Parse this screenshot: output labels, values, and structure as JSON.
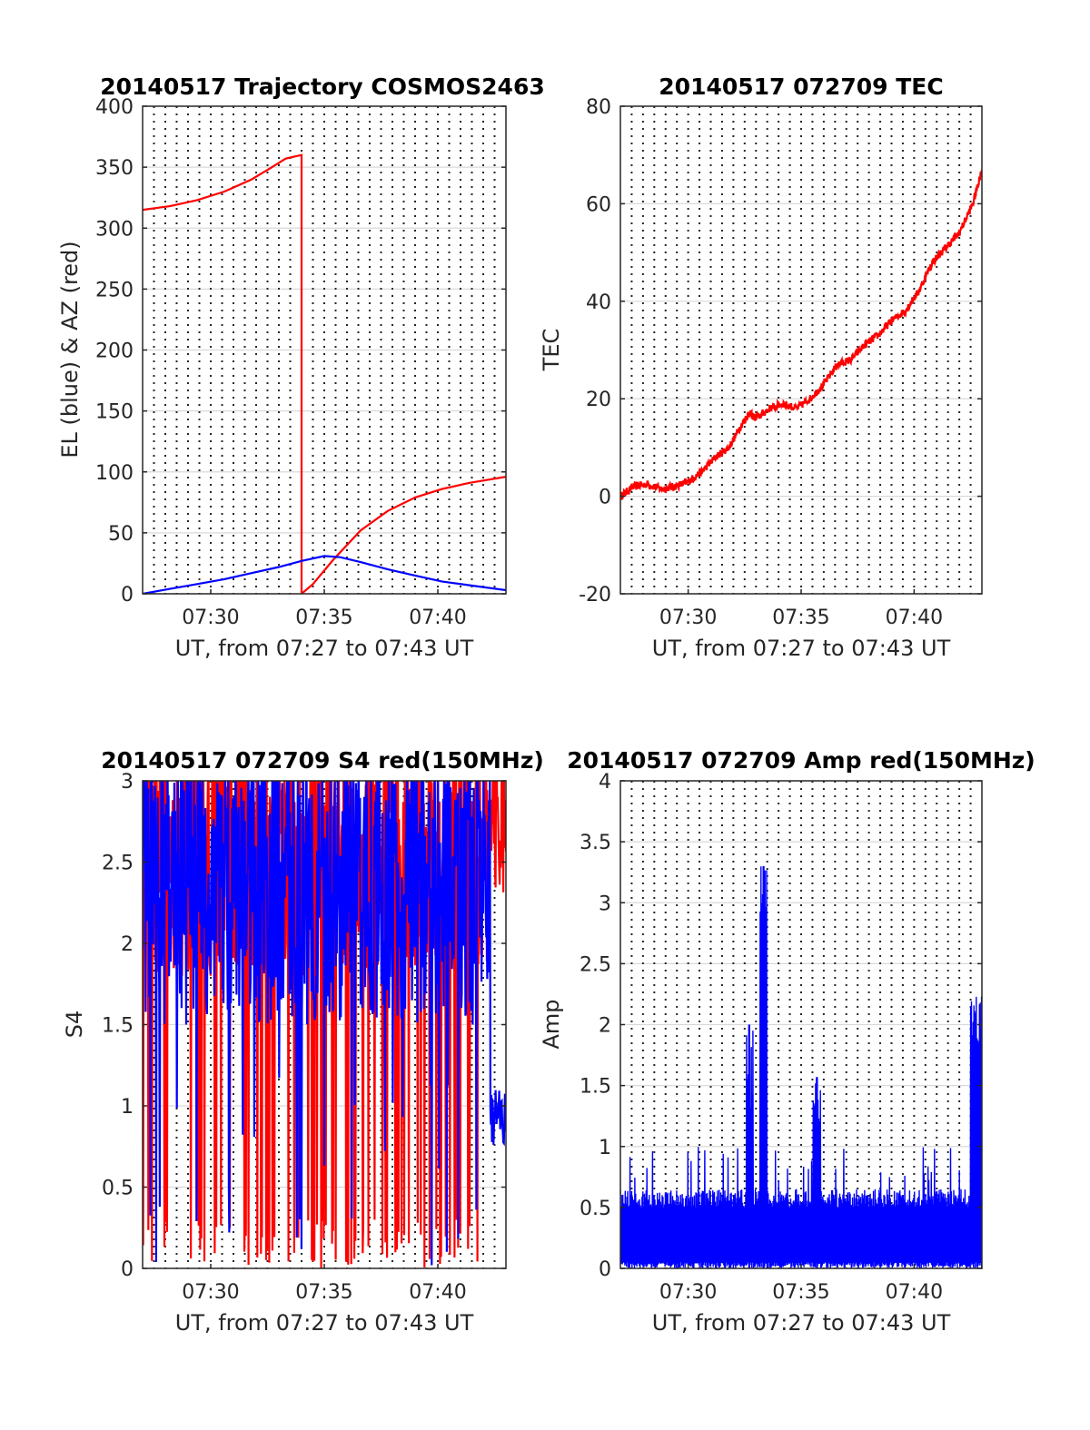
{
  "figure": {
    "background": "#ffffff"
  },
  "colors": {
    "red": "#ff0000",
    "blue": "#0000ff",
    "grid": "#262626"
  },
  "chart_data": [
    {
      "id": "trajectory",
      "type": "line",
      "title": "20140517 Trajectory COSMOS2463",
      "xlabel": "UT, from 07:27 to 07:43 UT",
      "ylabel": "EL (blue) & AZ (red)",
      "xlim": [
        7.45,
        7.7166667
      ],
      "ylim": [
        0,
        400
      ],
      "yticks": [
        0,
        50,
        100,
        150,
        200,
        250,
        300,
        350,
        400
      ],
      "ytick_labels": [
        "0",
        "50",
        "100",
        "150",
        "200",
        "250",
        "300",
        "350",
        "400"
      ],
      "xticks": [
        7.5,
        7.5833333,
        7.6666667
      ],
      "xtick_labels": [
        "07:30",
        "07:35",
        "07:40"
      ],
      "grid": true,
      "series": [
        {
          "color": "red",
          "role": "azimuth",
          "x": [
            7.45,
            7.47,
            7.49,
            7.51,
            7.53,
            7.545,
            7.555,
            7.5666667,
            7.5666667,
            7.5667,
            7.575,
            7.59,
            7.61,
            7.63,
            7.65,
            7.67,
            7.69,
            7.7166667
          ],
          "y": [
            315,
            318,
            323,
            330,
            340,
            350,
            357,
            360,
            0,
            0,
            8,
            28,
            52,
            68,
            79,
            86,
            91,
            96
          ]
        },
        {
          "color": "blue",
          "role": "elevation",
          "x": [
            7.45,
            7.47,
            7.49,
            7.51,
            7.53,
            7.55,
            7.5666667,
            7.5833333,
            7.595,
            7.61,
            7.63,
            7.65,
            7.67,
            7.69,
            7.7166667
          ],
          "y": [
            0,
            4,
            8,
            12,
            17,
            22,
            27,
            31,
            30,
            26,
            20,
            15,
            10,
            7,
            3
          ]
        }
      ]
    },
    {
      "id": "tec",
      "type": "line",
      "title": "20140517 072709 TEC",
      "xlabel": "UT, from 07:27 to 07:43 UT",
      "ylabel": "TEC",
      "xlim": [
        7.45,
        7.7166667
      ],
      "ylim": [
        -20,
        80
      ],
      "yticks": [
        -20,
        0,
        20,
        40,
        60,
        80
      ],
      "ytick_labels": [
        "-20",
        "0",
        "20",
        "40",
        "60",
        "80"
      ],
      "xticks": [
        7.5,
        7.5833333,
        7.6666667
      ],
      "xtick_labels": [
        "07:30",
        "07:35",
        "07:40"
      ],
      "grid": true,
      "series": [
        {
          "color": "red",
          "x": [
            7.45,
            7.46,
            7.47,
            7.48,
            7.49,
            7.5,
            7.51,
            7.52,
            7.53,
            7.54,
            7.545,
            7.55,
            7.56,
            7.57,
            7.58,
            7.59,
            7.6,
            7.61,
            7.62,
            7.63,
            7.64,
            7.65,
            7.66,
            7.67,
            7.68,
            7.69,
            7.7,
            7.71,
            7.7166667
          ],
          "y": [
            0,
            2,
            2.5,
            1.5,
            2,
            3,
            5,
            8,
            10,
            15,
            17,
            16,
            18,
            19,
            18,
            20,
            23,
            27,
            28,
            31,
            33,
            36,
            38,
            42,
            48,
            51,
            54,
            60,
            67
          ]
        }
      ]
    },
    {
      "id": "s4",
      "type": "line",
      "title": "20140517 072709 S4 red(150MHz)",
      "xlabel": "UT, from 07:27 to 07:43 UT",
      "ylabel": "S4",
      "xlim": [
        7.45,
        7.7166667
      ],
      "ylim": [
        0,
        3
      ],
      "yticks": [
        0,
        0.5,
        1,
        1.5,
        2,
        2.5,
        3
      ],
      "ytick_labels": [
        "0",
        "0.5",
        "1",
        "1.5",
        "2",
        "2.5",
        "3"
      ],
      "xticks": [
        7.5,
        7.5833333,
        7.6666667
      ],
      "xtick_labels": [
        "07:30",
        "07:35",
        "07:40"
      ],
      "grid": true,
      "dense": {
        "mode": "s4",
        "samples": 700
      },
      "series": [
        {
          "color": "red",
          "role": "dense noise clipped at top"
        },
        {
          "color": "blue",
          "role": "dense noise clipped at top"
        }
      ]
    },
    {
      "id": "amp",
      "type": "line",
      "title": "20140517 072709 Amp red(150MHz)",
      "xlabel": "UT, from 07:27 to 07:43 UT",
      "ylabel": "Amp",
      "xlim": [
        7.45,
        7.7166667
      ],
      "ylim": [
        0,
        4
      ],
      "yticks": [
        0,
        0.5,
        1,
        1.5,
        2,
        2.5,
        3,
        3.5,
        4
      ],
      "ytick_labels": [
        "0",
        "0.5",
        "1",
        "1.5",
        "2",
        "2.5",
        "3",
        "3.5",
        "4"
      ],
      "xticks": [
        7.5,
        7.5833333,
        7.6666667
      ],
      "xtick_labels": [
        "07:30",
        "07:35",
        "07:40"
      ],
      "grid": true,
      "dense": {
        "mode": "amp",
        "samples": 900
      },
      "series": [
        {
          "color": "blue",
          "role": "amplitude noise",
          "peaks": [
            {
              "x": 7.545,
              "y": 2.0
            },
            {
              "x": 7.5556,
              "y": 3.3
            },
            {
              "x": 7.595,
              "y": 1.57
            },
            {
              "x": 7.7166667,
              "y": 2.23
            }
          ]
        }
      ]
    }
  ]
}
